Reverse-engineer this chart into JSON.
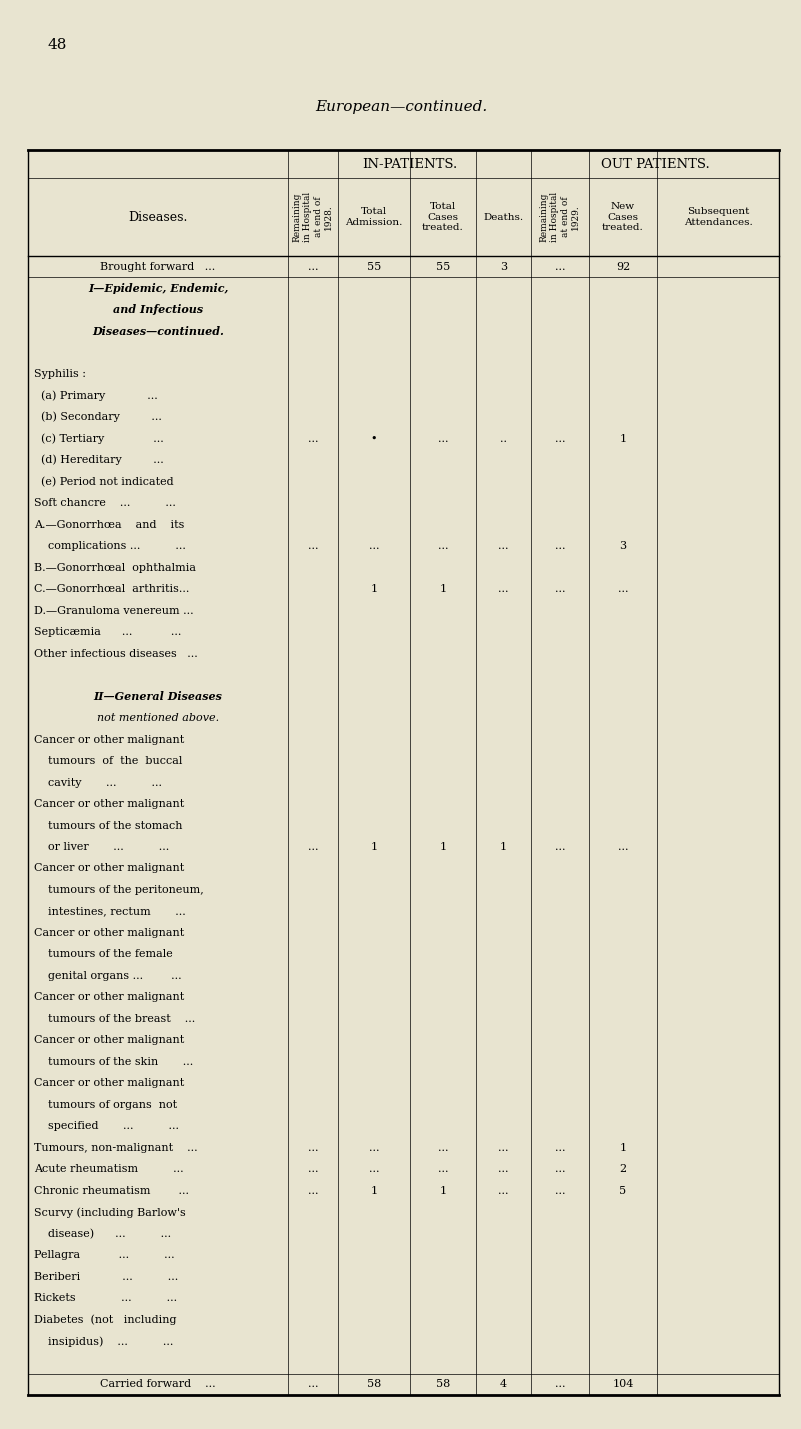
{
  "page_number": "48",
  "title": "European—continued.",
  "bg_color": "#e8e4d0",
  "rows": [
    {
      "label": "Brought forward   ...",
      "center": true,
      "bold": false,
      "italic": false,
      "r28": "...",
      "adm": "55",
      "tot": "55",
      "dth": "3",
      "r29": "...",
      "new": "92",
      "sub": "",
      "sep_after": true
    },
    {
      "label": "I—Epidemic, Endemic,",
      "center": true,
      "bold": true,
      "italic": true,
      "r28": "",
      "adm": "",
      "tot": "",
      "dth": "",
      "r29": "",
      "new": "",
      "sub": "",
      "sep_after": false
    },
    {
      "label": "and Infectious",
      "center": true,
      "bold": true,
      "italic": true,
      "r28": "",
      "adm": "",
      "tot": "",
      "dth": "",
      "r29": "",
      "new": "",
      "sub": "",
      "sep_after": false
    },
    {
      "label": "Diseases—continued.",
      "center": true,
      "bold": true,
      "italic": true,
      "r28": "",
      "adm": "",
      "tot": "",
      "dth": "",
      "r29": "",
      "new": "",
      "sub": "",
      "sep_after": false
    },
    {
      "label": "",
      "center": false,
      "bold": false,
      "italic": false,
      "r28": "",
      "adm": "",
      "tot": "",
      "dth": "",
      "r29": "",
      "new": "",
      "sub": "",
      "sep_after": false
    },
    {
      "label": "Syphilis :",
      "center": false,
      "bold": false,
      "italic": false,
      "r28": "",
      "adm": "",
      "tot": "",
      "dth": "",
      "r29": "",
      "new": "",
      "sub": "",
      "sep_after": false
    },
    {
      "label": "  (a) Primary            ...",
      "center": false,
      "bold": false,
      "italic": false,
      "r28": "",
      "adm": "",
      "tot": "",
      "dth": "",
      "r29": "",
      "new": "",
      "sub": "",
      "sep_after": false
    },
    {
      "label": "  (b) Secondary         ...",
      "center": false,
      "bold": false,
      "italic": false,
      "r28": "",
      "adm": "",
      "tot": "",
      "dth": "",
      "r29": "",
      "new": "",
      "sub": "",
      "sep_after": false
    },
    {
      "label": "  (c) Tertiary              ...",
      "center": false,
      "bold": false,
      "italic": false,
      "r28": "...",
      "adm": "•",
      "tot": "...",
      "dth": "..",
      "r29": "...",
      "new": "1",
      "sub": "",
      "sep_after": false
    },
    {
      "label": "  (d) Hereditary         ...",
      "center": false,
      "bold": false,
      "italic": false,
      "r28": "",
      "adm": "",
      "tot": "",
      "dth": "",
      "r29": "",
      "new": "",
      "sub": "",
      "sep_after": false
    },
    {
      "label": "  (e) Period not indicated",
      "center": false,
      "bold": false,
      "italic": false,
      "r28": "",
      "adm": "",
      "tot": "",
      "dth": "",
      "r29": "",
      "new": "",
      "sub": "",
      "sep_after": false
    },
    {
      "label": "Soft chancre    ...          ...",
      "center": false,
      "bold": false,
      "italic": false,
      "r28": "",
      "adm": "",
      "tot": "",
      "dth": "",
      "r29": "",
      "new": "",
      "sub": "",
      "sep_after": false
    },
    {
      "label": "A.—Gonorrhœa    and    its",
      "center": false,
      "bold": false,
      "italic": false,
      "r28": "",
      "adm": "",
      "tot": "",
      "dth": "",
      "r29": "",
      "new": "",
      "sub": "",
      "sep_after": false
    },
    {
      "label": "    complications ...          ...",
      "center": false,
      "bold": false,
      "italic": false,
      "r28": "...",
      "adm": "...",
      "tot": "...",
      "dth": "...",
      "r29": "...",
      "new": "3",
      "sub": "",
      "sep_after": false
    },
    {
      "label": "B.—Gonorrhœal  ophthalmia",
      "center": false,
      "bold": false,
      "italic": false,
      "r28": "",
      "adm": "",
      "tot": "",
      "dth": "",
      "r29": "",
      "new": "",
      "sub": "",
      "sep_after": false
    },
    {
      "label": "C.—Gonorrhœal  arthritis...",
      "center": false,
      "bold": false,
      "italic": false,
      "r28": "",
      "adm": "1",
      "tot": "1",
      "dth": "...",
      "r29": "...",
      "new": "...",
      "sub": "",
      "sep_after": false
    },
    {
      "label": "D.—Granuloma venereum ...",
      "center": false,
      "bold": false,
      "italic": false,
      "r28": "",
      "adm": "",
      "tot": "",
      "dth": "",
      "r29": "",
      "new": "",
      "sub": "",
      "sep_after": false
    },
    {
      "label": "Septicæmia      ...           ...",
      "center": false,
      "bold": false,
      "italic": false,
      "r28": "",
      "adm": "",
      "tot": "",
      "dth": "",
      "r29": "",
      "new": "",
      "sub": "",
      "sep_after": false
    },
    {
      "label": "Other infectious diseases   ...",
      "center": false,
      "bold": false,
      "italic": false,
      "r28": "",
      "adm": "",
      "tot": "",
      "dth": "",
      "r29": "",
      "new": "",
      "sub": "",
      "sep_after": false
    },
    {
      "label": "",
      "center": false,
      "bold": false,
      "italic": false,
      "r28": "",
      "adm": "",
      "tot": "",
      "dth": "",
      "r29": "",
      "new": "",
      "sub": "",
      "sep_after": false
    },
    {
      "label": "II—General Diseases",
      "center": true,
      "bold": true,
      "italic": true,
      "r28": "",
      "adm": "",
      "tot": "",
      "dth": "",
      "r29": "",
      "new": "",
      "sub": "",
      "sep_after": false
    },
    {
      "label": "not mentioned above.",
      "center": true,
      "bold": false,
      "italic": true,
      "r28": "",
      "adm": "",
      "tot": "",
      "dth": "",
      "r29": "",
      "new": "",
      "sub": "",
      "sep_after": false
    },
    {
      "label": "Cancer or other malignant",
      "center": false,
      "bold": false,
      "italic": false,
      "r28": "",
      "adm": "",
      "tot": "",
      "dth": "",
      "r29": "",
      "new": "",
      "sub": "",
      "sep_after": false
    },
    {
      "label": "    tumours  of  the  buccal",
      "center": false,
      "bold": false,
      "italic": false,
      "r28": "",
      "adm": "",
      "tot": "",
      "dth": "",
      "r29": "",
      "new": "",
      "sub": "",
      "sep_after": false
    },
    {
      "label": "    cavity       ...          ...",
      "center": false,
      "bold": false,
      "italic": false,
      "r28": "",
      "adm": "",
      "tot": "",
      "dth": "",
      "r29": "",
      "new": "",
      "sub": "",
      "sep_after": false
    },
    {
      "label": "Cancer or other malignant",
      "center": false,
      "bold": false,
      "italic": false,
      "r28": "",
      "adm": "",
      "tot": "",
      "dth": "",
      "r29": "",
      "new": "",
      "sub": "",
      "sep_after": false
    },
    {
      "label": "    tumours of the stomach",
      "center": false,
      "bold": false,
      "italic": false,
      "r28": "",
      "adm": "",
      "tot": "",
      "dth": "",
      "r29": "",
      "new": "",
      "sub": "",
      "sep_after": false
    },
    {
      "label": "    or liver       ...          ...",
      "center": false,
      "bold": false,
      "italic": false,
      "r28": "...",
      "adm": "1",
      "tot": "1",
      "dth": "1",
      "r29": "...",
      "new": "...",
      "sub": "",
      "sep_after": false
    },
    {
      "label": "Cancer or other malignant",
      "center": false,
      "bold": false,
      "italic": false,
      "r28": "",
      "adm": "",
      "tot": "",
      "dth": "",
      "r29": "",
      "new": "",
      "sub": "",
      "sep_after": false
    },
    {
      "label": "    tumours of the peritoneum,",
      "center": false,
      "bold": false,
      "italic": false,
      "r28": "",
      "adm": "",
      "tot": "",
      "dth": "",
      "r29": "",
      "new": "",
      "sub": "",
      "sep_after": false
    },
    {
      "label": "    intestines, rectum       ...",
      "center": false,
      "bold": false,
      "italic": false,
      "r28": "",
      "adm": "",
      "tot": "",
      "dth": "",
      "r29": "",
      "new": "",
      "sub": "",
      "sep_after": false
    },
    {
      "label": "Cancer or other malignant",
      "center": false,
      "bold": false,
      "italic": false,
      "r28": "",
      "adm": "",
      "tot": "",
      "dth": "",
      "r29": "",
      "new": "",
      "sub": "",
      "sep_after": false
    },
    {
      "label": "    tumours of the female",
      "center": false,
      "bold": false,
      "italic": false,
      "r28": "",
      "adm": "",
      "tot": "",
      "dth": "",
      "r29": "",
      "new": "",
      "sub": "",
      "sep_after": false
    },
    {
      "label": "    genital organs ...        ...",
      "center": false,
      "bold": false,
      "italic": false,
      "r28": "",
      "adm": "",
      "tot": "",
      "dth": "",
      "r29": "",
      "new": "",
      "sub": "",
      "sep_after": false
    },
    {
      "label": "Cancer or other malignant",
      "center": false,
      "bold": false,
      "italic": false,
      "r28": "",
      "adm": "",
      "tot": "",
      "dth": "",
      "r29": "",
      "new": "",
      "sub": "",
      "sep_after": false
    },
    {
      "label": "    tumours of the breast    ...",
      "center": false,
      "bold": false,
      "italic": false,
      "r28": "",
      "adm": "",
      "tot": "",
      "dth": "",
      "r29": "",
      "new": "",
      "sub": "",
      "sep_after": false
    },
    {
      "label": "Cancer or other malignant",
      "center": false,
      "bold": false,
      "italic": false,
      "r28": "",
      "adm": "",
      "tot": "",
      "dth": "",
      "r29": "",
      "new": "",
      "sub": "",
      "sep_after": false
    },
    {
      "label": "    tumours of the skin       ...",
      "center": false,
      "bold": false,
      "italic": false,
      "r28": "",
      "adm": "",
      "tot": "",
      "dth": "",
      "r29": "",
      "new": "",
      "sub": "",
      "sep_after": false
    },
    {
      "label": "Cancer or other malignant",
      "center": false,
      "bold": false,
      "italic": false,
      "r28": "",
      "adm": "",
      "tot": "",
      "dth": "",
      "r29": "",
      "new": "",
      "sub": "",
      "sep_after": false
    },
    {
      "label": "    tumours of organs  not",
      "center": false,
      "bold": false,
      "italic": false,
      "r28": "",
      "adm": "",
      "tot": "",
      "dth": "",
      "r29": "",
      "new": "",
      "sub": "",
      "sep_after": false
    },
    {
      "label": "    specified       ...          ...",
      "center": false,
      "bold": false,
      "italic": false,
      "r28": "",
      "adm": "",
      "tot": "",
      "dth": "",
      "r29": "",
      "new": "",
      "sub": "",
      "sep_after": false
    },
    {
      "label": "Tumours, non-malignant    ...",
      "center": false,
      "bold": false,
      "italic": false,
      "r28": "...",
      "adm": "...",
      "tot": "...",
      "dth": "...",
      "r29": "...",
      "new": "1",
      "sub": "",
      "sep_after": false
    },
    {
      "label": "Acute rheumatism          ...",
      "center": false,
      "bold": false,
      "italic": false,
      "r28": "...",
      "adm": "...",
      "tot": "...",
      "dth": "...",
      "r29": "...",
      "new": "2",
      "sub": "",
      "sep_after": false
    },
    {
      "label": "Chronic rheumatism        ...",
      "center": false,
      "bold": false,
      "italic": false,
      "r28": "...",
      "adm": "1",
      "tot": "1",
      "dth": "...",
      "r29": "...",
      "new": "5",
      "sub": "",
      "sep_after": false
    },
    {
      "label": "Scurvy (including Barlow's",
      "center": false,
      "bold": false,
      "italic": false,
      "r28": "",
      "adm": "",
      "tot": "",
      "dth": "",
      "r29": "",
      "new": "",
      "sub": "",
      "sep_after": false
    },
    {
      "label": "    disease)      ...          ...",
      "center": false,
      "bold": false,
      "italic": false,
      "r28": "",
      "adm": "",
      "tot": "",
      "dth": "",
      "r29": "",
      "new": "",
      "sub": "",
      "sep_after": false
    },
    {
      "label": "Pellagra           ...          ...",
      "center": false,
      "bold": false,
      "italic": false,
      "r28": "",
      "adm": "",
      "tot": "",
      "dth": "",
      "r29": "",
      "new": "",
      "sub": "",
      "sep_after": false
    },
    {
      "label": "Beriberi            ...          ...",
      "center": false,
      "bold": false,
      "italic": false,
      "r28": "",
      "adm": "",
      "tot": "",
      "dth": "",
      "r29": "",
      "new": "",
      "sub": "",
      "sep_after": false
    },
    {
      "label": "Rickets             ...          ...",
      "center": false,
      "bold": false,
      "italic": false,
      "r28": "",
      "adm": "",
      "tot": "",
      "dth": "",
      "r29": "",
      "new": "",
      "sub": "",
      "sep_after": false
    },
    {
      "label": "Diabetes  (not   including",
      "center": false,
      "bold": false,
      "italic": false,
      "r28": "",
      "adm": "",
      "tot": "",
      "dth": "",
      "r29": "",
      "new": "",
      "sub": "",
      "sep_after": false
    },
    {
      "label": "    insipidus)    ...          ...",
      "center": false,
      "bold": false,
      "italic": false,
      "r28": "",
      "adm": "",
      "tot": "",
      "dth": "",
      "r29": "",
      "new": "",
      "sub": "",
      "sep_after": false
    },
    {
      "label": "",
      "center": false,
      "bold": false,
      "italic": false,
      "r28": "",
      "adm": "",
      "tot": "",
      "dth": "",
      "r29": "",
      "new": "",
      "sub": "",
      "sep_after": false
    },
    {
      "label": "Carried forward    ...",
      "center": true,
      "bold": false,
      "italic": false,
      "r28": "...",
      "adm": "58",
      "tot": "58",
      "dth": "4",
      "r29": "...",
      "new": "104",
      "sub": "",
      "sep_after": false
    }
  ]
}
